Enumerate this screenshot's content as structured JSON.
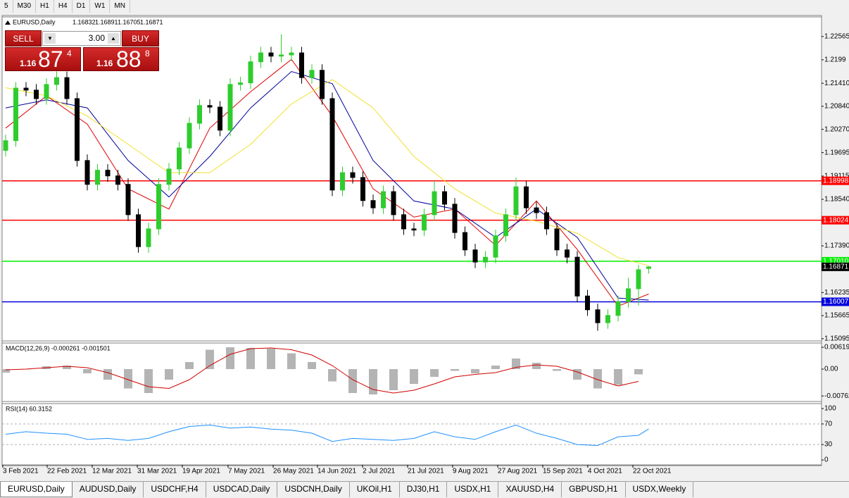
{
  "ui": {
    "toolbar": [
      "5",
      "M30",
      "H1",
      "H4",
      "D1",
      "W1",
      "MN"
    ],
    "trade": {
      "sell": "SELL",
      "lots": "3.00",
      "buy": "BUY",
      "sell_price": [
        "1.16",
        "87",
        "4"
      ],
      "buy_price": [
        "1.16",
        "88",
        "8"
      ]
    },
    "tabs": [
      "EURUSD,Daily",
      "AUDUSD,Daily",
      "USDCHF,H4",
      "USDCAD,Daily",
      "USDCNH,Daily",
      "UKOil,H1",
      "DJ30,H1",
      "USDX,H1",
      "XAUUSD,H4",
      "GBPUSD,H1",
      "USDX,Weekly"
    ]
  },
  "chart_data": [
    {
      "type": "candlestick",
      "title": "EURUSD,Daily",
      "header_prices": [
        "1.16832",
        "1.16891",
        "1.16705",
        "1.16871"
      ],
      "up_color": "#2ecc2e",
      "down_color": "#000000",
      "open": [
        1.1975,
        1.1999,
        1.2129,
        1.2124,
        1.2103,
        1.2138,
        1.2155,
        1.2103,
        1.195,
        1.1891,
        1.1926,
        1.1912,
        1.1891,
        1.1816,
        1.1737,
        1.1781,
        1.1891,
        1.1929,
        1.1981,
        1.2042,
        1.2086,
        1.2082,
        1.2025,
        1.2138,
        1.2142,
        1.2194,
        1.2216,
        1.2208,
        1.2211,
        1.2216,
        1.2155,
        1.2173,
        1.2103,
        1.1877,
        1.192,
        1.1908,
        1.1851,
        1.1833,
        1.1873,
        1.1816,
        1.1781,
        1.1778,
        1.1816,
        1.1873,
        1.1842,
        1.1772,
        1.1729,
        1.1699,
        1.1711,
        1.1764,
        1.1816,
        1.1885,
        1.1833,
        1.1821,
        1.1781,
        1.1729,
        1.1711,
        1.1615,
        1.1581,
        1.1549,
        1.1567,
        1.1601,
        1.1633,
        1.16832
      ],
      "high": [
        1.2014,
        1.2144,
        1.2144,
        1.2139,
        1.2153,
        1.217,
        1.217,
        1.2118,
        1.1965,
        1.1941,
        1.1941,
        1.1927,
        1.1906,
        1.1831,
        1.1796,
        1.1906,
        1.1944,
        1.1996,
        1.2057,
        1.2101,
        1.2101,
        1.2097,
        1.2153,
        1.2157,
        1.2209,
        1.2231,
        1.2231,
        1.2262,
        1.2231,
        1.2231,
        1.2188,
        1.2188,
        1.2118,
        1.1935,
        1.1935,
        1.1923,
        1.1866,
        1.1888,
        1.1888,
        1.1831,
        1.1796,
        1.1831,
        1.19,
        1.1888,
        1.1857,
        1.1787,
        1.1744,
        1.1726,
        1.1779,
        1.1831,
        1.1908,
        1.19,
        1.1848,
        1.1836,
        1.1796,
        1.1744,
        1.1726,
        1.163,
        1.1596,
        1.1582,
        1.1616,
        1.166,
        1.1692,
        1.16891
      ],
      "low": [
        1.196,
        1.1984,
        1.2109,
        1.2088,
        1.2088,
        1.2123,
        1.2088,
        1.1935,
        1.1876,
        1.1876,
        1.1897,
        1.1876,
        1.1801,
        1.1722,
        1.1722,
        1.1766,
        1.1876,
        1.1914,
        1.1966,
        1.2027,
        1.2067,
        1.201,
        1.201,
        1.2123,
        1.2127,
        1.2179,
        1.2193,
        1.2193,
        1.2196,
        1.214,
        1.214,
        1.2088,
        1.1862,
        1.1862,
        1.1893,
        1.1836,
        1.1818,
        1.1818,
        1.1801,
        1.1766,
        1.1763,
        1.1763,
        1.1801,
        1.1827,
        1.1757,
        1.1714,
        1.1684,
        1.1684,
        1.1696,
        1.1749,
        1.1801,
        1.1818,
        1.1806,
        1.1766,
        1.1714,
        1.1696,
        1.16,
        1.1566,
        1.1529,
        1.1534,
        1.1552,
        1.1586,
        1.1592,
        1.16705
      ],
      "close": [
        1.1999,
        1.2129,
        1.2124,
        1.2103,
        1.2138,
        1.2155,
        1.2103,
        1.195,
        1.1891,
        1.1926,
        1.1912,
        1.1891,
        1.1816,
        1.1737,
        1.1781,
        1.1891,
        1.1929,
        1.1981,
        1.2042,
        1.2086,
        1.2082,
        1.2025,
        1.2138,
        1.2142,
        1.2194,
        1.2216,
        1.2208,
        1.2211,
        1.2216,
        1.2155,
        1.2173,
        1.2103,
        1.1877,
        1.192,
        1.1908,
        1.1851,
        1.1833,
        1.1873,
        1.1816,
        1.1781,
        1.1778,
        1.1816,
        1.1873,
        1.1842,
        1.1772,
        1.1729,
        1.1699,
        1.1711,
        1.1764,
        1.1816,
        1.1885,
        1.1833,
        1.1821,
        1.1781,
        1.1729,
        1.1711,
        1.1615,
        1.1581,
        1.1549,
        1.1567,
        1.1601,
        1.1633,
        1.168,
        1.16871
      ],
      "lines": [
        {
          "color": "#e00000",
          "x": [
            0,
            4,
            8,
            12,
            16,
            20,
            24,
            28,
            32,
            36,
            40,
            44,
            48,
            52,
            56,
            60,
            63
          ],
          "values": [
            1.203,
            1.211,
            1.204,
            1.188,
            1.183,
            1.203,
            1.212,
            1.22,
            1.206,
            1.188,
            1.181,
            1.183,
            1.174,
            1.185,
            1.173,
            1.159,
            1.162
          ]
        },
        {
          "color": "#000099",
          "x": [
            0,
            4,
            8,
            12,
            16,
            20,
            24,
            28,
            32,
            36,
            40,
            44,
            48,
            52,
            56,
            60,
            63
          ],
          "values": [
            1.208,
            1.21,
            1.208,
            1.195,
            1.186,
            1.196,
            1.208,
            1.217,
            1.214,
            1.195,
            1.185,
            1.183,
            1.176,
            1.183,
            1.176,
            1.161,
            1.1605
          ]
        },
        {
          "color": "#f2e02a",
          "x": [
            0,
            4,
            8,
            12,
            16,
            20,
            24,
            28,
            32,
            36,
            40,
            44,
            48,
            52,
            56,
            60,
            63
          ],
          "values": [
            1.213,
            1.211,
            1.206,
            1.199,
            1.192,
            1.192,
            1.199,
            1.209,
            1.215,
            1.208,
            1.196,
            1.188,
            1.182,
            1.18,
            1.177,
            1.171,
            1.169
          ]
        }
      ],
      "levels": [
        {
          "value": 1.18998,
          "color": "#ff0000"
        },
        {
          "value": 1.18024,
          "color": "#ff0000"
        },
        {
          "value": 1.1701,
          "label": "1.17010",
          "color": "#00ee00"
        },
        {
          "value": 1.16007,
          "color": "#0000dd"
        }
      ],
      "ylim": [
        1.1504,
        1.2305
      ],
      "yticks": [
        1.22565,
        1.2199,
        {
          "value": 1.2141,
          "label": "1.21410"
        },
        {
          "value": 1.2084,
          "label": "1.20840"
        },
        {
          "value": 1.2027,
          "label": "1.20270"
        },
        1.19695,
        1.19115,
        {
          "value": 1.1854,
          "label": "1.18540"
        },
        {
          "value": 1.1739,
          "label": "1.17390"
        },
        1.16235,
        1.15665,
        1.15095
      ],
      "xticks": [
        {
          "value": -0.28,
          "label": "3 Feb 2021"
        },
        {
          "value": 4.07,
          "label": "22 Feb 2021"
        },
        {
          "value": 8.48,
          "label": "12 Mar 2021"
        },
        {
          "value": 12.9,
          "label": "31 Mar 2021"
        },
        {
          "value": 17.31,
          "label": "19 Apr 2021"
        },
        {
          "value": 21.79,
          "label": "7 May 2021"
        },
        {
          "value": 26.21,
          "label": "26 May 2021"
        },
        {
          "value": 30.55,
          "label": "14 Jun 2021"
        },
        {
          "value": 34.97,
          "label": "2 Jul 2021"
        },
        {
          "value": 39.38,
          "label": "21 Jul 2021"
        },
        {
          "value": 43.79,
          "label": "9 Aug 2021"
        },
        {
          "value": 48.21,
          "label": "27 Aug 2021"
        },
        {
          "value": 52.62,
          "label": "15 Sep 2021"
        },
        {
          "value": 57.03,
          "label": "4 Oct 2021"
        },
        {
          "value": 61.45,
          "label": "22 Oct 2021"
        }
      ]
    },
    {
      "type": "macd",
      "title": "MACD(12,26,9) -0.000261 -0.001501",
      "histogram_color": "#b4b4b4",
      "signal_color": "#d00000",
      "x": [
        0,
        2,
        4,
        6,
        8,
        10,
        12,
        14,
        16,
        18,
        20,
        22,
        24,
        26,
        28,
        30,
        32,
        34,
        36,
        38,
        40,
        42,
        44,
        46,
        48,
        50,
        52,
        54,
        56,
        58,
        60,
        62
      ],
      "values": [
        -0.001,
        0,
        0.0008,
        0.001,
        -0.0012,
        -0.003,
        -0.0055,
        -0.0068,
        -0.003,
        0.002,
        0.0055,
        0.0062,
        0.006,
        0.0058,
        0.0045,
        0.002,
        -0.0035,
        -0.0068,
        -0.0072,
        -0.006,
        -0.0042,
        -0.0022,
        -0.0005,
        -0.0012,
        0.001,
        0.003,
        0.0018,
        -0.0005,
        -0.003,
        -0.0055,
        -0.0045,
        -0.0015
      ],
      "signal": [
        -0.0002,
        0,
        0.0004,
        0.0008,
        0.0004,
        -0.001,
        -0.003,
        -0.005,
        -0.0055,
        -0.003,
        0.001,
        0.0042,
        0.0058,
        0.006,
        0.0055,
        0.004,
        0.001,
        -0.003,
        -0.0058,
        -0.0068,
        -0.006,
        -0.0042,
        -0.0022,
        -0.0015,
        -0.001,
        0.0005,
        0.0012,
        0.0008,
        -0.0008,
        -0.003,
        -0.0048,
        -0.0035
      ],
      "ylim": [
        -0.0092,
        0.0074
      ],
      "yticks": [
        0.006193,
        {
          "value": 0,
          "label": "0.00"
        },
        -0.007623
      ]
    },
    {
      "type": "line",
      "title": "RSI(14) 60.3152",
      "color": "#1e90ff",
      "x": [
        0,
        2,
        4,
        6,
        8,
        10,
        12,
        14,
        16,
        18,
        20,
        22,
        24,
        26,
        28,
        30,
        32,
        34,
        36,
        38,
        40,
        42,
        44,
        46,
        48,
        50,
        52,
        54,
        56,
        58,
        60,
        62,
        63
      ],
      "values": [
        50,
        55,
        52,
        50,
        40,
        42,
        38,
        42,
        55,
        65,
        68,
        62,
        64,
        60,
        58,
        52,
        36,
        42,
        40,
        38,
        42,
        55,
        45,
        40,
        55,
        68,
        52,
        42,
        30,
        28,
        45,
        48,
        60.3152
      ],
      "ylim": [
        -9.6,
        109.6
      ],
      "yticks": [
        100,
        70,
        30,
        0
      ],
      "levels": [
        70,
        30
      ]
    }
  ]
}
